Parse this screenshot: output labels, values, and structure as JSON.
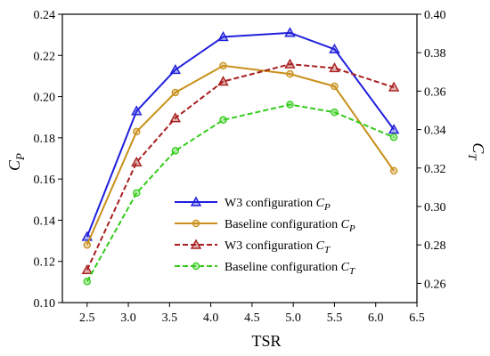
{
  "chart_data": {
    "type": "line",
    "x": [
      2.5,
      3.1,
      3.57,
      4.15,
      4.96,
      5.5,
      6.22
    ],
    "xlabel": "TSR",
    "xlim": [
      2.2,
      6.5
    ],
    "xticks": [
      "2.5",
      "3.0",
      "3.5",
      "4.0",
      "4.5",
      "5.0",
      "5.5",
      "6.0",
      "6.5"
    ],
    "y_left": {
      "label_main": "C",
      "label_sub": "P",
      "lim": [
        0.1,
        0.24
      ],
      "ticks": [
        "0.10",
        "0.12",
        "0.14",
        "0.16",
        "0.18",
        "0.20",
        "0.22",
        "0.24"
      ]
    },
    "y_right": {
      "label_main": "C",
      "label_sub": "T",
      "lim": [
        0.25,
        0.4
      ],
      "ticks": [
        "0.26",
        "0.28",
        "0.30",
        "0.32",
        "0.34",
        "0.36",
        "0.38",
        "0.40"
      ]
    },
    "series": [
      {
        "name": "W3 configuration",
        "sym_main": "C",
        "sym_sub": "P",
        "axis": "left",
        "color": "#1f1fdc",
        "marker": "triangle",
        "dash": false,
        "values": [
          0.132,
          0.193,
          0.213,
          0.229,
          0.231,
          0.223,
          0.184
        ]
      },
      {
        "name": "Baseline configuration",
        "sym_main": "C",
        "sym_sub": "P",
        "axis": "left",
        "color": "#c8901a",
        "marker": "circle",
        "dash": false,
        "values": [
          0.128,
          0.183,
          0.202,
          0.215,
          0.211,
          0.205,
          0.164
        ]
      },
      {
        "name": "W3 configuration",
        "sym_main": "C",
        "sym_sub": "T",
        "axis": "right",
        "color": "#a81f1f",
        "marker": "triangle",
        "dash": true,
        "values": [
          0.267,
          0.323,
          0.346,
          0.365,
          0.374,
          0.372,
          0.362
        ]
      },
      {
        "name": "Baseline configuration",
        "sym_main": "C",
        "sym_sub": "T",
        "axis": "right",
        "color": "#33cc1a",
        "marker": "circle",
        "dash": true,
        "values": [
          0.261,
          0.307,
          0.329,
          0.345,
          0.353,
          0.349,
          0.336
        ]
      }
    ],
    "legend_position": "center-bottom",
    "grid": false
  }
}
